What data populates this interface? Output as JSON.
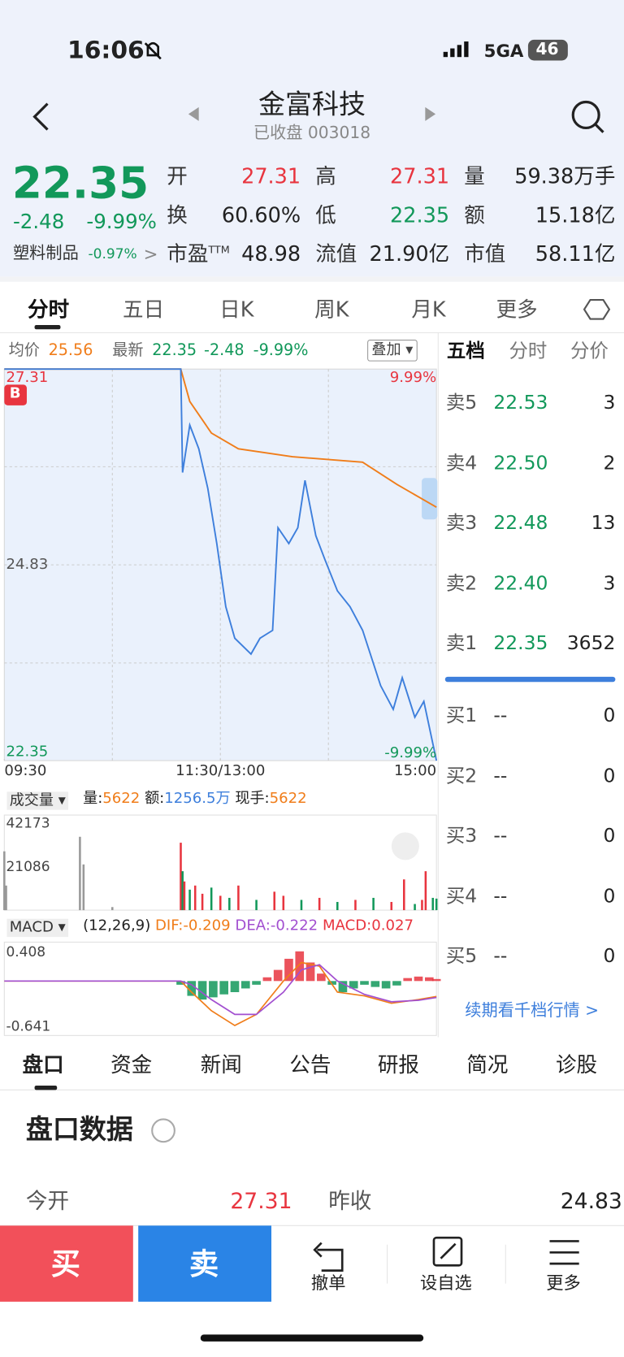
{
  "status": {
    "time": "16:06",
    "network": "5GA",
    "battery": "46"
  },
  "header": {
    "title": "金富科技",
    "subtitle": "已收盘 003018"
  },
  "quote": {
    "price": "22.35",
    "change": "-2.48",
    "pct": "-9.99%",
    "sector": "塑料制品",
    "sector_pct": "-0.97%",
    "stats": [
      [
        {
          "label": "开",
          "value": "27.31",
          "color": "#e8353f"
        },
        {
          "label": "高",
          "value": "27.31",
          "color": "#e8353f"
        },
        {
          "label": "量",
          "value": "59.38万手",
          "color": "#222"
        }
      ],
      [
        {
          "label": "换",
          "value": "60.60%",
          "color": "#222"
        },
        {
          "label": "低",
          "value": "22.35",
          "color": "#12985a"
        },
        {
          "label": "额",
          "value": "15.18亿",
          "color": "#222"
        }
      ],
      [
        {
          "label": "市盈",
          "sup": "TTM",
          "value": "48.98",
          "color": "#222"
        },
        {
          "label": "流值",
          "value": "21.90亿",
          "color": "#222"
        },
        {
          "label": "市值",
          "value": "58.11亿",
          "color": "#222"
        }
      ]
    ]
  },
  "tabs": [
    "分时",
    "五日",
    "日K",
    "周K",
    "月K",
    "更多"
  ],
  "intraday": {
    "avg_label": "均价",
    "avg": "25.56",
    "latest_label": "最新",
    "latest": "22.35",
    "change": "-2.48",
    "pct": "-9.99%",
    "overlay": "叠加",
    "marker": "B",
    "ylim": [
      22.35,
      27.31
    ],
    "yticks": [
      22.35,
      24.83,
      27.31
    ],
    "pct_top": "9.99%",
    "pct_bottom": "-9.99%",
    "xlim": [
      0,
      240
    ],
    "xticks": [
      {
        "value": 0,
        "label": "09:30"
      },
      {
        "value": 120,
        "label": "11:30/13:00"
      },
      {
        "value": 240,
        "label": "15:00"
      }
    ],
    "price": {
      "color": "#3e7fdc",
      "x": [
        0,
        98,
        99,
        103,
        108,
        113,
        118,
        123,
        128,
        137,
        142,
        149,
        152,
        158,
        163,
        167,
        173,
        178,
        185,
        192,
        199,
        209,
        216,
        221,
        228,
        233,
        240
      ],
      "values": [
        27.31,
        27.31,
        26.0,
        26.6,
        26.3,
        25.8,
        25.1,
        24.3,
        23.9,
        23.7,
        23.9,
        24.0,
        25.3,
        25.1,
        25.3,
        25.9,
        25.2,
        24.9,
        24.5,
        24.3,
        24.0,
        23.3,
        23.0,
        23.4,
        22.9,
        23.1,
        22.35
      ]
    },
    "average": {
      "color": "#f07d1a",
      "x": [
        0,
        98,
        103,
        115,
        130,
        160,
        199,
        218,
        240
      ],
      "values": [
        27.31,
        27.31,
        26.9,
        26.5,
        26.3,
        26.2,
        26.13,
        25.85,
        25.56
      ]
    }
  },
  "volume": {
    "label": "成交量",
    "vol_label": "量:",
    "vol": "5622",
    "amt_label": "额:",
    "amt": "1256.5万",
    "hand_label": "现手:",
    "hand": "5622",
    "ylim": [
      0,
      42173
    ],
    "yticks": [
      21086,
      42173
    ],
    "x": [
      0,
      1,
      42,
      44,
      60,
      98,
      99,
      100,
      103,
      106,
      110,
      115,
      120,
      125,
      130,
      140,
      150,
      155,
      165,
      175,
      185,
      195,
      205,
      215,
      222,
      228,
      232,
      234,
      238,
      240
    ],
    "values": [
      28700,
      12000,
      35800,
      22300,
      1500,
      32900,
      19000,
      14000,
      10000,
      12000,
      8000,
      11000,
      7000,
      6000,
      12000,
      5000,
      9000,
      7000,
      5000,
      6000,
      4000,
      5000,
      6000,
      4000,
      15000,
      3000,
      5000,
      19000,
      6000,
      5622
    ],
    "colors": [
      "#999",
      "#999",
      "#999",
      "#999",
      "#999",
      "#e8353f",
      "#12985a",
      "#e8353f",
      "#12985a",
      "#e8353f",
      "#e8353f",
      "#12985a",
      "#e8353f",
      "#12985a",
      "#e8353f",
      "#12985a",
      "#e8353f",
      "#e8353f",
      "#12985a",
      "#e8353f",
      "#12985a",
      "#e8353f",
      "#12985a",
      "#e8353f",
      "#e8353f",
      "#12985a",
      "#e8353f",
      "#e8353f",
      "#12985a",
      "#12985a"
    ]
  },
  "macd": {
    "label": "MACD",
    "params": "(12,26,9)",
    "dif_label": "DIF:-0.209",
    "dea_label": "DEA:-0.222",
    "macd_label": "MACD:0.027",
    "ylim": [
      -0.641,
      0.408
    ],
    "yticks": [
      -0.641,
      0.408
    ],
    "hist_x": [
      98,
      104,
      110,
      116,
      122,
      128,
      134,
      140,
      146,
      152,
      158,
      164,
      170,
      176,
      182,
      188,
      194,
      200,
      206,
      212,
      218,
      224,
      230,
      236,
      240
    ],
    "hist": [
      -0.05,
      -0.2,
      -0.25,
      -0.22,
      -0.18,
      -0.15,
      -0.1,
      -0.05,
      0.05,
      0.15,
      0.3,
      0.4,
      0.25,
      0.1,
      -0.05,
      -0.15,
      -0.1,
      -0.05,
      -0.08,
      -0.1,
      -0.06,
      0.04,
      0.06,
      0.05,
      0.027
    ],
    "line_x": [
      0,
      98,
      104,
      115,
      128,
      140,
      155,
      165,
      175,
      185,
      200,
      215,
      230,
      240
    ],
    "dif": {
      "color": "#f07d1a",
      "values": [
        0,
        0,
        -0.15,
        -0.4,
        -0.6,
        -0.45,
        0,
        0.25,
        0.2,
        -0.15,
        -0.2,
        -0.3,
        -0.25,
        -0.209
      ]
    },
    "dea": {
      "color": "#a24fd0",
      "values": [
        0,
        0,
        -0.05,
        -0.25,
        -0.45,
        -0.45,
        -0.15,
        0.15,
        0.22,
        0.0,
        -0.18,
        -0.28,
        -0.26,
        -0.222
      ]
    }
  },
  "order_book": {
    "tabs": [
      "五档",
      "分时",
      "分价"
    ],
    "sells": [
      {
        "label": "卖5",
        "price": "22.53",
        "qty": "3"
      },
      {
        "label": "卖4",
        "price": "22.50",
        "qty": "2"
      },
      {
        "label": "卖3",
        "price": "22.48",
        "qty": "13"
      },
      {
        "label": "卖2",
        "price": "22.40",
        "qty": "3"
      },
      {
        "label": "卖1",
        "price": "22.35",
        "qty": "3652"
      }
    ],
    "buys": [
      {
        "label": "买1",
        "price": "--",
        "qty": "0"
      },
      {
        "label": "买2",
        "price": "--",
        "qty": "0"
      },
      {
        "label": "买3",
        "price": "--",
        "qty": "0"
      },
      {
        "label": "买4",
        "price": "--",
        "qty": "0"
      },
      {
        "label": "买5",
        "price": "--",
        "qty": "0"
      }
    ],
    "link": "续期看千档行情"
  },
  "bottom_tabs": [
    "盘口",
    "资金",
    "新闻",
    "公告",
    "研报",
    "简况",
    "诊股"
  ],
  "section": {
    "title": "盘口数据",
    "rows": [
      {
        "label": "今开",
        "value": "27.31"
      },
      {
        "label": "昨收",
        "value": "24.83"
      }
    ]
  },
  "actions": {
    "buy": "买",
    "sell": "卖",
    "cancel": "撤单",
    "watch": "设自选",
    "more": "更多"
  }
}
